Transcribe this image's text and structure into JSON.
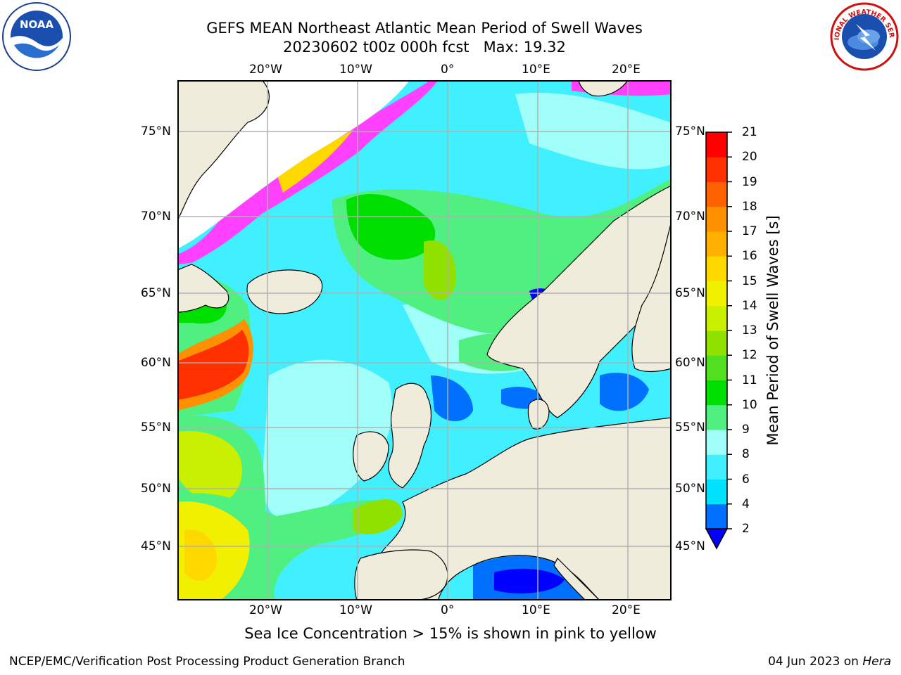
{
  "header": {
    "title_line1": "GEFS MEAN Northeast Atlantic Mean Period of Swell Waves",
    "title_line2": "20230602 t00z 000h fcst   Max: 19.32"
  },
  "logos": {
    "left": {
      "icon": "noaa-logo",
      "text": "NOAA"
    },
    "right": {
      "icon": "nws-logo",
      "text": "NATIONAL WEATHER SERVICE"
    }
  },
  "map": {
    "lon_labels": [
      "20°W",
      "10°W",
      "0°",
      "10°E",
      "20°E"
    ],
    "lat_labels": [
      "75°N",
      "70°N",
      "65°N",
      "60°N",
      "55°N",
      "50°N",
      "45°N"
    ],
    "colors": {
      "land": "#efecdc",
      "grid": "#b0b0b0",
      "coast": "#000000"
    }
  },
  "colorbar": {
    "label": "Mean Period of Swell Waves [s]",
    "ticks": [
      "2",
      "4",
      "6",
      "8",
      "9",
      "10",
      "11",
      "12",
      "13",
      "14",
      "15",
      "16",
      "17",
      "18",
      "19",
      "20",
      "21"
    ],
    "colors": [
      "#0000ff",
      "#0070ff",
      "#00e0ff",
      "#40f0ff",
      "#a0fff8",
      "#50f080",
      "#00e000",
      "#50e020",
      "#90e000",
      "#c8f000",
      "#f0f000",
      "#ffd800",
      "#ffb000",
      "#ff9000",
      "#ff6000",
      "#ff3000",
      "#ff0000"
    ],
    "under_color": "#0000ff"
  },
  "footer": {
    "note": "Sea Ice Concentration > 15% is shown in pink to yellow",
    "left": "NCEP/EMC/Verification Post Processing Product Generation Branch",
    "right_date": "04 Jun 2023 on ",
    "right_host": "Hera"
  }
}
